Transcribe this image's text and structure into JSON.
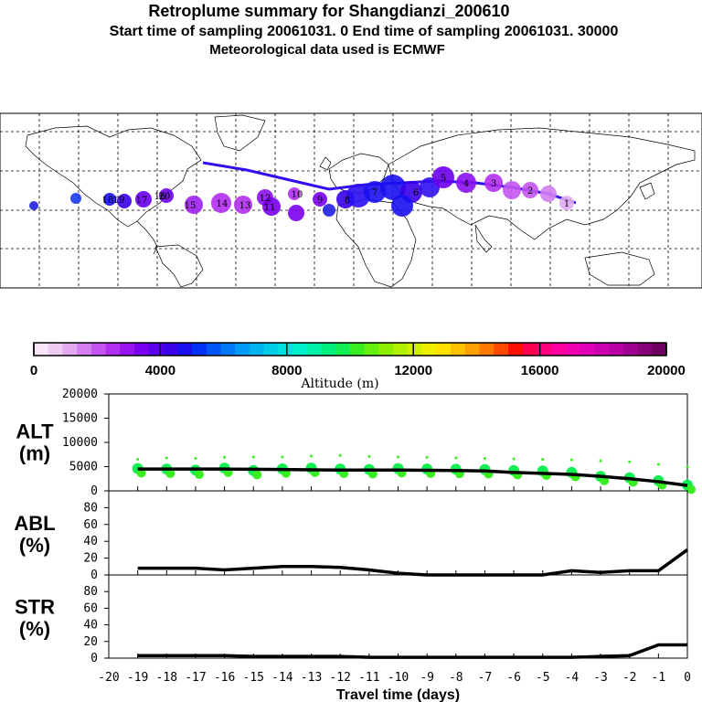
{
  "header": {
    "title": "Retroplume summary for Shangdianzi_200610",
    "sampling": "Start time of sampling 20061031.     0     End time of sampling 20061031. 30000",
    "met": "Meteorological data used is ECMWF"
  },
  "colorbar": {
    "label": "Altitude (m)",
    "ticks": [
      "0",
      "4000",
      "8000",
      "12000",
      "16000",
      "20000"
    ],
    "colors": [
      "#f7e6f7",
      "#efccf2",
      "#e2aaf0",
      "#d47ef0",
      "#c455f0",
      "#b12ff0",
      "#9a14f0",
      "#7a00f0",
      "#5a00ee",
      "#3a00e8",
      "#1a10f0",
      "#0030f5",
      "#0055f7",
      "#0078f7",
      "#0099f5",
      "#00b4f0",
      "#00cce8",
      "#00e0e0",
      "#00f0cc",
      "#00f2a8",
      "#00f080",
      "#14ee55",
      "#38ee20",
      "#66f010",
      "#8cf000",
      "#b0f000",
      "#d0f000",
      "#eef000",
      "#ffe000",
      "#ffc000",
      "#ffa000",
      "#ff7800",
      "#ff4a00",
      "#ff1000",
      "#ff0050",
      "#ff0080",
      "#ff00a0",
      "#f000b0",
      "#e000b8",
      "#cc00b0",
      "#b800a4",
      "#a00090",
      "#880078",
      "#6e0060"
    ]
  },
  "map": {
    "labels": [
      "20",
      "19",
      "18",
      "17",
      "16",
      "15",
      "14",
      "13",
      "12",
      "11",
      "10",
      "9",
      "8",
      "7",
      "6",
      "5",
      "4",
      "3",
      "2",
      "1"
    ]
  },
  "chart_data": [
    {
      "type": "line",
      "title": "ALT (m)",
      "panel_label_1": "ALT",
      "panel_label_2": "(m)",
      "x": [
        -19,
        -18,
        -17,
        -16,
        -15,
        -14,
        -13,
        -12,
        -11,
        -10,
        -9,
        -8,
        -7,
        -6,
        -5,
        -4,
        -3,
        -2,
        -1,
        0
      ],
      "values": [
        4500,
        4500,
        4500,
        4500,
        4450,
        4400,
        4350,
        4300,
        4300,
        4300,
        4250,
        4200,
        4100,
        3800,
        3600,
        3400,
        3000,
        2500,
        1900,
        1100
      ],
      "scatter_values": [
        4600,
        4500,
        4300,
        4700,
        4200,
        4550,
        4700,
        4500,
        4400,
        4600,
        4500,
        4450,
        4400,
        4200,
        4100,
        3800,
        3000,
        2700,
        2100,
        1200
      ],
      "scatter_outliers": [
        6500,
        6800,
        6700,
        6900,
        7000,
        7000,
        7200,
        7300,
        7100,
        7000,
        6900,
        6800,
        6700,
        6600,
        6500,
        6400,
        6200,
        6000,
        5500,
        5000
      ],
      "ylim": [
        0,
        20000
      ],
      "yticks": [
        "0",
        "5000",
        "10000",
        "15000",
        "20000"
      ],
      "xlim": [
        -20,
        0
      ]
    },
    {
      "type": "line",
      "title": "ABL (%)",
      "panel_label_1": "ABL",
      "panel_label_2": "(%)",
      "x": [
        -19,
        -18,
        -17,
        -16,
        -15,
        -14,
        -13,
        -12,
        -11,
        -10,
        -9,
        -8,
        -7,
        -6,
        -5,
        -4,
        -3,
        -2,
        -1,
        0
      ],
      "values": [
        8,
        8,
        8,
        6,
        8,
        10,
        10,
        9,
        6,
        2,
        0,
        0,
        0,
        0,
        0,
        5,
        3,
        5,
        5,
        30
      ],
      "ylim": [
        0,
        100
      ],
      "yticks": [
        "0",
        "20",
        "40",
        "60",
        "80"
      ]
    },
    {
      "type": "line",
      "title": "STR (%)",
      "panel_label_1": "STR",
      "panel_label_2": "(%)",
      "x": [
        -19,
        -18,
        -17,
        -16,
        -15,
        -14,
        -13,
        -12,
        -11,
        -10,
        -9,
        -8,
        -7,
        -6,
        -5,
        -4,
        -3,
        -2,
        -1,
        0
      ],
      "values": [
        3,
        3,
        3,
        3,
        2,
        2,
        2,
        2,
        1,
        1,
        1,
        1,
        1,
        1,
        1,
        1,
        2,
        3,
        16,
        16
      ],
      "ylim": [
        0,
        100
      ],
      "yticks": [
        "0",
        "20",
        "40",
        "60",
        "80"
      ],
      "xlabel": "Travel time (days)",
      "xticks": [
        "-20",
        "-19",
        "-18",
        "-17",
        "-16",
        "-15",
        "-14",
        "-13",
        "-12",
        "-11",
        "-10",
        "-9",
        "-8",
        "-7",
        "-6",
        "-5",
        "-4",
        "-3",
        "-2",
        "-1",
        "0"
      ]
    }
  ]
}
